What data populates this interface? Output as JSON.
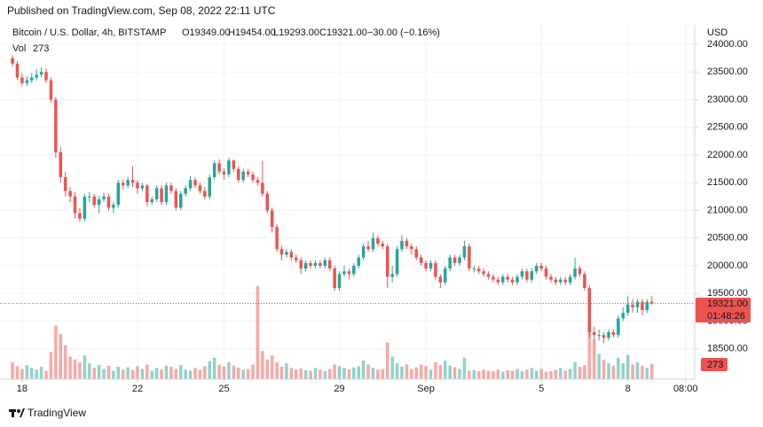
{
  "header": {
    "published": "Published on TradingView.com, Sep 08, 2022 22:11 UTC"
  },
  "footer": {
    "brand": "TradingView"
  },
  "chart_data": {
    "type": "candlestick",
    "title": "Bitcoin / U.S. Dollar, 4h, BITSTAMP",
    "legend": {
      "open": "O19349.00",
      "high": "H19454.00",
      "low": "L19293.00",
      "close": "C19321.00",
      "change": "−30.00 (−0.16%)"
    },
    "volume_title": "Vol",
    "volume_value_label": "273",
    "currency": "USD",
    "last_price_label": "19321.00",
    "countdown": "01:48:26",
    "up_color": "#26a69a",
    "down_color": "#ef5350",
    "grid": true,
    "xlim": [
      -2.6,
      141.9
    ],
    "xticks": [
      {
        "value": 2,
        "label": "18"
      },
      {
        "value": 26,
        "label": "22"
      },
      {
        "value": 44,
        "label": "25"
      },
      {
        "value": 68,
        "label": "29"
      },
      {
        "value": 86,
        "label": "Sep"
      },
      {
        "value": 110,
        "label": "5"
      },
      {
        "value": 128,
        "label": "8"
      },
      {
        "value": 140,
        "label": "08:00"
      }
    ],
    "ylim": [
      17952,
      24352
    ],
    "yticks": [
      {
        "value": 18500,
        "label": "18500.00"
      },
      {
        "value": 19000,
        "label": "19000.00"
      },
      {
        "value": 19500,
        "label": "19500.00"
      },
      {
        "value": 20000,
        "label": "20000.00"
      },
      {
        "value": 20500,
        "label": "20500.00"
      },
      {
        "value": 21000,
        "label": "21000.00"
      },
      {
        "value": 21500,
        "label": "21500.00"
      },
      {
        "value": 22000,
        "label": "22000.00"
      },
      {
        "value": 22500,
        "label": "22500.00"
      },
      {
        "value": 23000,
        "label": "23000.00"
      },
      {
        "value": 23500,
        "label": "23500.00"
      },
      {
        "value": 24000,
        "label": "24000.00"
      }
    ],
    "open": [
      23750,
      23650,
      23400,
      23300,
      23350,
      23400,
      23450,
      23500,
      23350,
      23000,
      22050,
      21600,
      21350,
      21250,
      20950,
      20850,
      21250,
      21250,
      21100,
      21200,
      21250,
      21050,
      21100,
      21500,
      21450,
      21550,
      21500,
      21400,
      21450,
      21150,
      21200,
      21400,
      21150,
      21450,
      21350,
      21050,
      21300,
      21400,
      21550,
      21450,
      21350,
      21250,
      21600,
      21850,
      21700,
      21650,
      21900,
      21750,
      21550,
      21700,
      21650,
      21550,
      21500,
      21300,
      21000,
      20700,
      20300,
      20200,
      20250,
      20150,
      20100,
      19950,
      20050,
      20000,
      20050,
      20000,
      20100,
      19950,
      19600,
      19850,
      19900,
      19850,
      20000,
      20150,
      20350,
      20300,
      20500,
      20400,
      20350,
      19800,
      19850,
      20300,
      20450,
      20350,
      20300,
      20150,
      20050,
      19950,
      20050,
      19800,
      19700,
      19950,
      20150,
      20050,
      20150,
      20350,
      19950,
      19950,
      19900,
      19850,
      19800,
      19750,
      19700,
      19800,
      19750,
      19700,
      19800,
      19900,
      19750,
      19900,
      20000,
      19950,
      19800,
      19750,
      19700,
      19750,
      19700,
      19800,
      19950,
      19850,
      19600,
      18800,
      18750,
      18750,
      18700,
      18800,
      18750,
      19050,
      19150,
      19300,
      19250,
      19350,
      19200,
      19349
    ],
    "high": [
      23800,
      23700,
      23480,
      23420,
      23480,
      23550,
      23580,
      23560,
      23400,
      23050,
      22150,
      21700,
      21420,
      21330,
      21050,
      21300,
      21330,
      21300,
      21260,
      21320,
      21300,
      21150,
      21550,
      21550,
      21600,
      21800,
      21550,
      21500,
      21480,
      21250,
      21450,
      21450,
      21500,
      21500,
      21400,
      21350,
      21450,
      21620,
      21600,
      21500,
      21420,
      21650,
      21900,
      21920,
      21760,
      21950,
      21920,
      21800,
      21750,
      21750,
      21700,
      21600,
      21900,
      21350,
      21050,
      20750,
      20350,
      20300,
      20300,
      20200,
      20150,
      20100,
      20100,
      20100,
      20100,
      20150,
      20150,
      20000,
      19900,
      20000,
      19950,
      20050,
      20200,
      20400,
      20450,
      20600,
      20550,
      20450,
      20400,
      20000,
      20350,
      20550,
      20500,
      20400,
      20350,
      20200,
      20100,
      20100,
      20100,
      19850,
      20000,
      20200,
      20200,
      20200,
      20450,
      20400,
      20000,
      20000,
      19950,
      19900,
      19850,
      19800,
      19850,
      19850,
      19800,
      19850,
      19950,
      19950,
      19950,
      20050,
      20050,
      20000,
      19850,
      19800,
      19800,
      19800,
      19850,
      20150,
      20000,
      19900,
      19650,
      18900,
      18850,
      18800,
      18850,
      18850,
      19100,
      19250,
      19450,
      19400,
      19400,
      19400,
      19400,
      19454
    ],
    "low": [
      23600,
      23350,
      23250,
      23250,
      23300,
      23350,
      23400,
      23300,
      22950,
      21950,
      21500,
      21250,
      21150,
      20850,
      20800,
      20800,
      21150,
      21050,
      20950,
      21150,
      21000,
      20950,
      21050,
      21380,
      21400,
      21420,
      21300,
      21350,
      21080,
      21100,
      21150,
      21100,
      21100,
      21300,
      21000,
      21000,
      21250,
      21350,
      21400,
      21300,
      21200,
      21200,
      21550,
      21650,
      21550,
      21600,
      21700,
      21500,
      21500,
      21600,
      21500,
      21450,
      21250,
      20950,
      20600,
      20250,
      20100,
      20150,
      20100,
      20050,
      19850,
      19900,
      19950,
      19950,
      19950,
      19950,
      19900,
      19550,
      19550,
      19800,
      19750,
      19800,
      19950,
      20100,
      20250,
      20250,
      20350,
      20300,
      19600,
      19700,
      19800,
      20250,
      20300,
      20200,
      20100,
      20000,
      19900,
      19900,
      19750,
      19600,
      19650,
      19900,
      20000,
      20000,
      20100,
      19900,
      19880,
      19850,
      19800,
      19750,
      19700,
      19650,
      19650,
      19700,
      19650,
      19650,
      19750,
      19700,
      19700,
      19850,
      19900,
      19750,
      19700,
      19650,
      19650,
      19650,
      19650,
      19750,
      19800,
      19550,
      18700,
      18650,
      18650,
      18600,
      18650,
      18700,
      18700,
      19000,
      19100,
      19150,
      19150,
      19100,
      19150,
      19293
    ],
    "close": [
      23650,
      23400,
      23300,
      23350,
      23400,
      23450,
      23500,
      23350,
      23000,
      22050,
      21600,
      21350,
      21250,
      20950,
      20850,
      21250,
      21250,
      21100,
      21200,
      21250,
      21050,
      21100,
      21500,
      21450,
      21550,
      21500,
      21400,
      21450,
      21150,
      21200,
      21400,
      21150,
      21450,
      21350,
      21050,
      21300,
      21400,
      21550,
      21450,
      21350,
      21250,
      21600,
      21850,
      21700,
      21650,
      21900,
      21750,
      21550,
      21700,
      21650,
      21550,
      21500,
      21300,
      21000,
      20700,
      20300,
      20200,
      20250,
      20150,
      20100,
      19950,
      20050,
      20000,
      20050,
      20000,
      20100,
      19950,
      19600,
      19850,
      19900,
      19850,
      20000,
      20150,
      20350,
      20300,
      20500,
      20400,
      20350,
      19800,
      19850,
      20300,
      20450,
      20350,
      20300,
      20150,
      20050,
      19950,
      20050,
      19800,
      19700,
      19950,
      20150,
      20050,
      20150,
      20350,
      19950,
      19950,
      19900,
      19850,
      19800,
      19750,
      19700,
      19800,
      19750,
      19700,
      19800,
      19900,
      19750,
      19900,
      20000,
      19950,
      19800,
      19750,
      19700,
      19750,
      19700,
      19800,
      19950,
      19850,
      19600,
      18800,
      18750,
      18750,
      18700,
      18800,
      18750,
      19050,
      19150,
      19300,
      19250,
      19350,
      19200,
      19349,
      19321
    ],
    "volume": [
      300,
      230,
      180,
      250,
      200,
      170,
      220,
      150,
      480,
      950,
      800,
      600,
      400,
      350,
      300,
      420,
      280,
      200,
      250,
      180,
      240,
      150,
      220,
      170,
      210,
      160,
      230,
      180,
      260,
      150,
      200,
      170,
      240,
      220,
      180,
      250,
      170,
      150,
      200,
      160,
      230,
      320,
      380,
      260,
      220,
      300,
      240,
      200,
      170,
      180,
      260,
      1650,
      500,
      350,
      420,
      300,
      220,
      280,
      200,
      170,
      190,
      160,
      150,
      200,
      170,
      140,
      180,
      260,
      230,
      200,
      170,
      210,
      230,
      330,
      260,
      200,
      170,
      180,
      650,
      400,
      280,
      220,
      260,
      180,
      210,
      260,
      230,
      170,
      300,
      250,
      330,
      240,
      210,
      180,
      380,
      150,
      160,
      140,
      170,
      150,
      140,
      170,
      130,
      160,
      150,
      180,
      140,
      170,
      200,
      150,
      180,
      130,
      140,
      170,
      200,
      150,
      180,
      300,
      220,
      250,
      1050,
      700,
      450,
      340,
      280,
      240,
      380,
      280,
      430,
      260,
      300,
      240,
      200,
      273
    ]
  }
}
